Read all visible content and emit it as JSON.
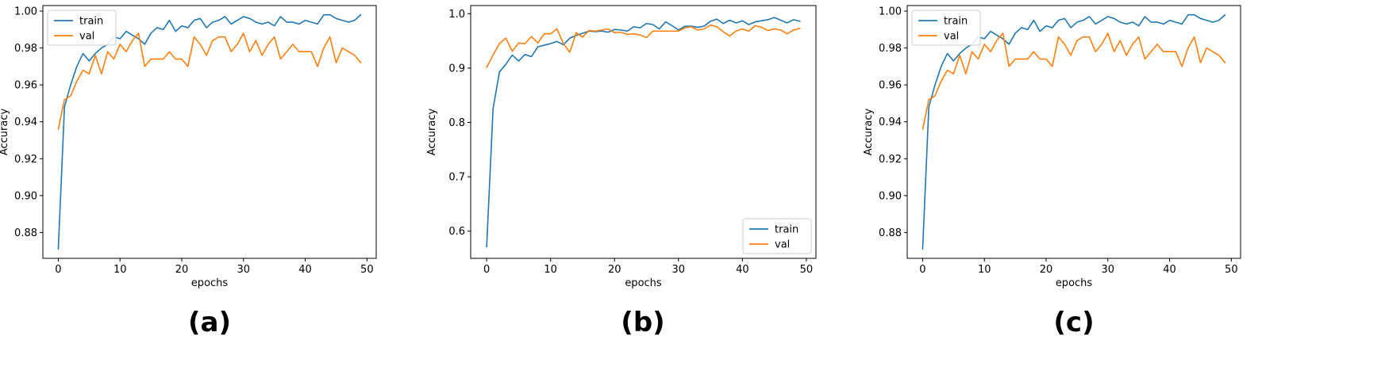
{
  "colors": {
    "train": "#1f77b4",
    "val": "#ff7f0e"
  },
  "chart_data": [
    {
      "type": "line",
      "panel_label": "(a)",
      "xlabel": "epochs",
      "ylabel": "Accuracy",
      "xlim": [
        -2.5,
        51.5
      ],
      "ylim": [
        0.866,
        1.003
      ],
      "xticks": [
        0,
        10,
        20,
        30,
        40,
        50
      ],
      "yticks": [
        0.88,
        0.9,
        0.92,
        0.94,
        0.96,
        0.98,
        1.0
      ],
      "ytick_labels": [
        "0.88",
        "0.90",
        "0.92",
        "0.94",
        "0.96",
        "0.98",
        "1.00"
      ],
      "grid": false,
      "legend_position": "top-left",
      "series": [
        {
          "name": "train",
          "color": "#1f77b4",
          "values": [
            0.871,
            0.948,
            0.96,
            0.97,
            0.977,
            0.973,
            0.977,
            0.98,
            0.982,
            0.986,
            0.985,
            0.989,
            0.987,
            0.985,
            0.982,
            0.988,
            0.991,
            0.99,
            0.995,
            0.989,
            0.992,
            0.991,
            0.995,
            0.996,
            0.991,
            0.994,
            0.995,
            0.997,
            0.993,
            0.995,
            0.997,
            0.996,
            0.994,
            0.993,
            0.994,
            0.992,
            0.997,
            0.994,
            0.994,
            0.993,
            0.995,
            0.994,
            0.993,
            0.998,
            0.998,
            0.996,
            0.995,
            0.994,
            0.995,
            0.998
          ]
        },
        {
          "name": "val",
          "color": "#ff7f0e",
          "values": [
            0.936,
            0.952,
            0.954,
            0.962,
            0.968,
            0.966,
            0.976,
            0.966,
            0.978,
            0.974,
            0.982,
            0.978,
            0.984,
            0.988,
            0.97,
            0.974,
            0.974,
            0.974,
            0.978,
            0.974,
            0.974,
            0.97,
            0.986,
            0.982,
            0.976,
            0.984,
            0.986,
            0.986,
            0.978,
            0.982,
            0.988,
            0.978,
            0.984,
            0.976,
            0.982,
            0.986,
            0.974,
            0.978,
            0.982,
            0.978,
            0.978,
            0.978,
            0.97,
            0.98,
            0.986,
            0.972,
            0.98,
            0.978,
            0.976,
            0.972
          ]
        }
      ]
    },
    {
      "type": "line",
      "panel_label": "(b)",
      "xlabel": "epochs",
      "ylabel": "Accuracy",
      "xlim": [
        -2.5,
        51.5
      ],
      "ylim": [
        0.55,
        1.015
      ],
      "xticks": [
        0,
        10,
        20,
        30,
        40,
        50
      ],
      "yticks": [
        0.6,
        0.7,
        0.8,
        0.9,
        1.0
      ],
      "ytick_labels": [
        "0.6",
        "0.7",
        "0.8",
        "0.9",
        "1.0"
      ],
      "grid": false,
      "legend_position": "bottom-right",
      "series": [
        {
          "name": "train",
          "color": "#1f77b4",
          "values": [
            0.571,
            0.825,
            0.893,
            0.907,
            0.924,
            0.913,
            0.925,
            0.921,
            0.939,
            0.942,
            0.945,
            0.949,
            0.943,
            0.955,
            0.96,
            0.964,
            0.968,
            0.967,
            0.968,
            0.966,
            0.971,
            0.97,
            0.968,
            0.976,
            0.974,
            0.982,
            0.98,
            0.972,
            0.985,
            0.978,
            0.97,
            0.977,
            0.977,
            0.975,
            0.977,
            0.986,
            0.99,
            0.982,
            0.988,
            0.983,
            0.987,
            0.98,
            0.985,
            0.987,
            0.989,
            0.993,
            0.988,
            0.983,
            0.989,
            0.986
          ]
        },
        {
          "name": "val",
          "color": "#ff7f0e",
          "values": [
            0.901,
            0.924,
            0.945,
            0.955,
            0.931,
            0.946,
            0.945,
            0.958,
            0.946,
            0.963,
            0.963,
            0.972,
            0.945,
            0.929,
            0.965,
            0.957,
            0.969,
            0.968,
            0.97,
            0.972,
            0.965,
            0.966,
            0.962,
            0.963,
            0.961,
            0.956,
            0.968,
            0.968,
            0.968,
            0.968,
            0.968,
            0.974,
            0.976,
            0.97,
            0.972,
            0.979,
            0.976,
            0.967,
            0.959,
            0.968,
            0.972,
            0.968,
            0.978,
            0.975,
            0.969,
            0.972,
            0.97,
            0.963,
            0.97,
            0.973
          ]
        }
      ]
    },
    {
      "type": "line",
      "panel_label": "(c)",
      "xlabel": "epochs",
      "ylabel": "Accuracy",
      "xlim": [
        -2.5,
        51.5
      ],
      "ylim": [
        0.866,
        1.003
      ],
      "xticks": [
        0,
        10,
        20,
        30,
        40,
        50
      ],
      "yticks": [
        0.88,
        0.9,
        0.92,
        0.94,
        0.96,
        0.98,
        1.0
      ],
      "ytick_labels": [
        "0.88",
        "0.90",
        "0.92",
        "0.94",
        "0.96",
        "0.98",
        "1.00"
      ],
      "grid": false,
      "legend_position": "top-left",
      "series": [
        {
          "name": "train",
          "color": "#1f77b4",
          "values": [
            0.871,
            0.948,
            0.96,
            0.97,
            0.977,
            0.973,
            0.977,
            0.98,
            0.982,
            0.986,
            0.985,
            0.989,
            0.987,
            0.985,
            0.982,
            0.988,
            0.991,
            0.99,
            0.995,
            0.989,
            0.992,
            0.991,
            0.995,
            0.996,
            0.991,
            0.994,
            0.995,
            0.997,
            0.993,
            0.995,
            0.997,
            0.996,
            0.994,
            0.993,
            0.994,
            0.992,
            0.997,
            0.994,
            0.994,
            0.993,
            0.995,
            0.994,
            0.993,
            0.998,
            0.998,
            0.996,
            0.995,
            0.994,
            0.995,
            0.998
          ]
        },
        {
          "name": "val",
          "color": "#ff7f0e",
          "values": [
            0.936,
            0.952,
            0.954,
            0.962,
            0.968,
            0.966,
            0.976,
            0.966,
            0.978,
            0.974,
            0.982,
            0.978,
            0.984,
            0.988,
            0.97,
            0.974,
            0.974,
            0.974,
            0.978,
            0.974,
            0.974,
            0.97,
            0.986,
            0.982,
            0.976,
            0.984,
            0.986,
            0.986,
            0.978,
            0.982,
            0.988,
            0.978,
            0.984,
            0.976,
            0.982,
            0.986,
            0.974,
            0.978,
            0.982,
            0.978,
            0.978,
            0.978,
            0.97,
            0.98,
            0.986,
            0.972,
            0.98,
            0.978,
            0.976,
            0.972
          ]
        }
      ]
    }
  ]
}
